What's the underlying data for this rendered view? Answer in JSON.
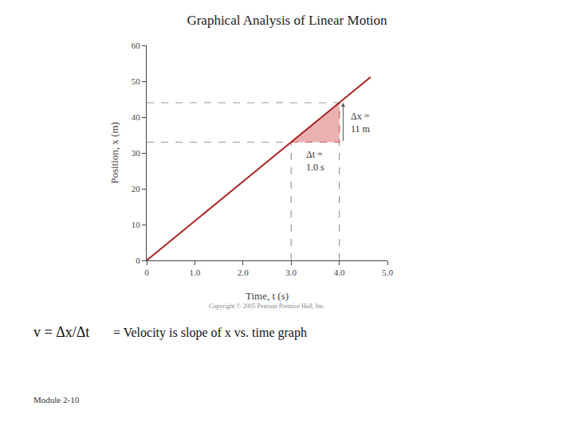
{
  "chart_data": {
    "type": "line",
    "title": "Graphical Analysis of Linear Motion",
    "xlabel": "Time, t (s)",
    "ylabel": "Position, x (m)",
    "xlim": [
      0,
      5.0
    ],
    "ylim": [
      0,
      60
    ],
    "xticks": [
      0,
      {
        "value": 1.0,
        "label": "1.0"
      },
      {
        "value": 2.0,
        "label": "2.0"
      },
      {
        "value": 3.0,
        "label": "3.0"
      },
      {
        "value": 4.0,
        "label": "4.0"
      },
      {
        "value": 5.0,
        "label": "5.0"
      }
    ],
    "yticks": [
      0,
      10,
      20,
      30,
      40,
      50,
      60
    ],
    "grid": false,
    "series": [
      {
        "type": "line",
        "x": [
          0,
          4.65
        ],
        "values": [
          0,
          51.15
        ],
        "color": "#aa2222"
      },
      {
        "type": "area",
        "x": [
          3.0,
          4.0,
          4.0
        ],
        "values": [
          33.0,
          33.0,
          44.0
        ],
        "color": "#e8a8a8"
      },
      {
        "type": "line",
        "x": [
          3.0,
          4.0,
          4.0,
          3.0
        ],
        "values": [
          33.0,
          33.0,
          44.0,
          33.0
        ],
        "color": "#aa2222",
        "line_style": "dashed"
      },
      {
        "type": "line",
        "x": [
          0,
          3.0
        ],
        "values": [
          33.0,
          33.0
        ],
        "color": "#999999",
        "line_style": "dashed"
      },
      {
        "type": "line",
        "x": [
          0,
          4.0
        ],
        "values": [
          44.0,
          44.0
        ],
        "color": "#999999",
        "line_style": "dashed"
      },
      {
        "type": "line",
        "x": [
          3.0,
          3.0
        ],
        "values": [
          0,
          33.0
        ],
        "color": "#999999",
        "line_style": "dashed"
      },
      {
        "type": "line",
        "x": [
          4.0,
          4.0
        ],
        "values": [
          0,
          44.0
        ],
        "color": "#999999",
        "line_style": "dashed"
      }
    ],
    "annotations": [
      "Δx =\n11 m",
      "Δt =\n1.0 s",
      "Copyright © 2005 Pearson Prentice Hall, Inc.",
      "v = Δx/Δt",
      "= Velocity is slope of x vs. time graph",
      "Module 2-10"
    ]
  }
}
